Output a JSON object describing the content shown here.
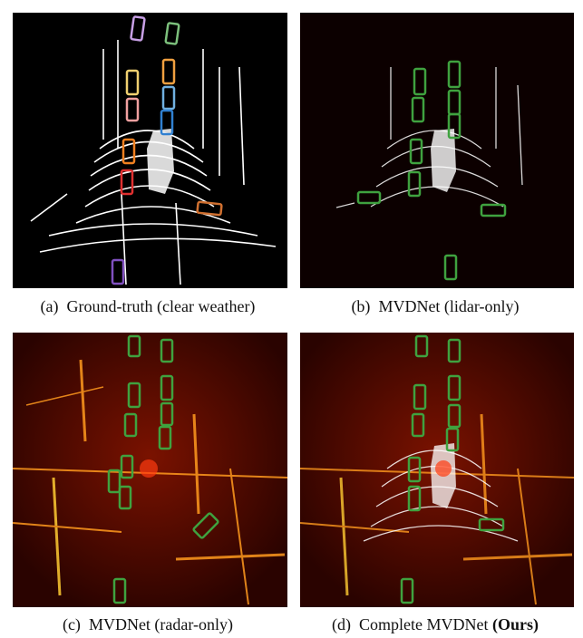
{
  "figure": {
    "panels": [
      {
        "id": "a",
        "caption_prefix": "(a)",
        "caption_text": "Ground-truth (clear weather)",
        "caption_bold": ""
      },
      {
        "id": "b",
        "caption_prefix": "(b)",
        "caption_text": "MVDNet (lidar-only)",
        "caption_bold": ""
      },
      {
        "id": "c",
        "caption_prefix": "(c)",
        "caption_text": "MVDNet (radar-only)",
        "caption_bold": ""
      },
      {
        "id": "d",
        "caption_prefix": "(d)",
        "caption_text": "Complete MVDNet",
        "caption_bold": "(Ours)"
      }
    ],
    "colors": {
      "lidar_background": "#000000",
      "lidar_background_tinted": "#0c0000",
      "radar_background": "#3a0500",
      "radar_hot": "#ffcc33",
      "prediction_box": "#3fa23f",
      "gt_boxes": [
        "#c8a0e6",
        "#7cc07c",
        "#f0d070",
        "#f0a040",
        "#f0a0a0",
        "#70b0e0",
        "#3080d0",
        "#f08020",
        "#e03030",
        "#d07030",
        "#8050c0"
      ]
    }
  }
}
